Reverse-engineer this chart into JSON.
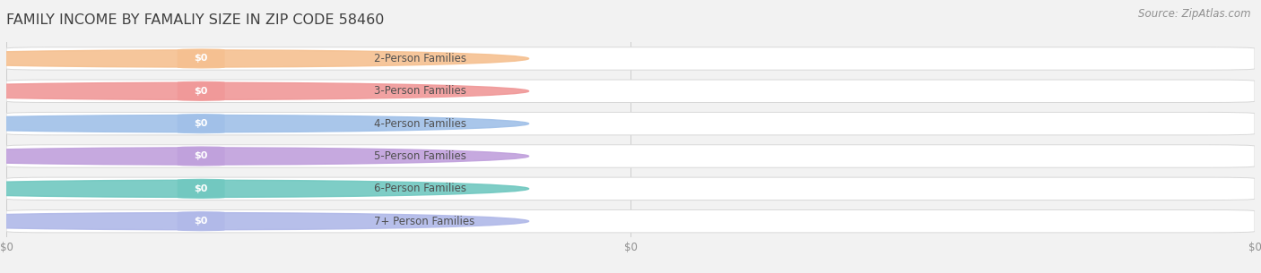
{
  "title": "FAMILY INCOME BY FAMALIY SIZE IN ZIP CODE 58460",
  "source": "Source: ZipAtlas.com",
  "categories": [
    "2-Person Families",
    "3-Person Families",
    "4-Person Families",
    "5-Person Families",
    "6-Person Families",
    "7+ Person Families"
  ],
  "values": [
    0,
    0,
    0,
    0,
    0,
    0
  ],
  "bar_colors": [
    "#F5C090",
    "#F09898",
    "#A0C0E8",
    "#C0A0DC",
    "#70C8C0",
    "#B0B8E8"
  ],
  "bg_color": "#f2f2f2",
  "track_facecolor": "#ffffff",
  "track_edgecolor": "#d8d8d8",
  "title_color": "#404040",
  "label_color": "#505050",
  "value_label_color": "#ffffff",
  "source_color": "#909090",
  "title_fontsize": 11.5,
  "label_fontsize": 8.5,
  "source_fontsize": 8.5,
  "tick_fontsize": 8.5,
  "xtick_labels": [
    "$0",
    "$0",
    "$0"
  ],
  "xtick_positions": [
    0.0,
    0.5,
    1.0
  ]
}
